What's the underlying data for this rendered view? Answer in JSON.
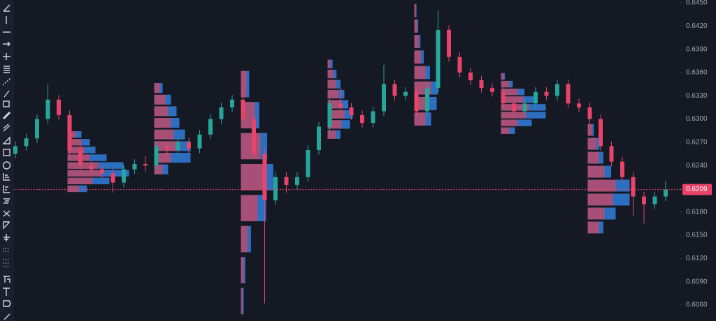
{
  "chart_data": {
    "type": "candlestick",
    "up_color": "#26a69a",
    "down_color": "#e8436a",
    "ylim": [
      0.606,
      0.645
    ],
    "yticks": [
      {
        "value": 0.606,
        "label": "0.6060"
      },
      {
        "value": 0.609,
        "label": "0.6090"
      },
      {
        "value": 0.612,
        "label": "0.6120"
      },
      {
        "value": 0.615,
        "label": "0.6150"
      },
      {
        "value": 0.618,
        "label": "0.6180"
      },
      {
        "value": 0.621,
        "label": "0.6210"
      },
      {
        "value": 0.624,
        "label": "0.6240"
      },
      {
        "value": 0.627,
        "label": "0.6270"
      },
      {
        "value": 0.63,
        "label": "0.6300"
      },
      {
        "value": 0.633,
        "label": "0.6330"
      },
      {
        "value": 0.636,
        "label": "0.6360"
      },
      {
        "value": 0.639,
        "label": "0.6390"
      },
      {
        "value": 0.642,
        "label": "0.6420"
      },
      {
        "value": 0.645,
        "label": "0.6450"
      }
    ],
    "last_price": 0.6209,
    "open": [
      0.6255,
      0.6265,
      0.6275,
      0.63,
      0.6325,
      0.6305,
      0.626,
      0.624,
      0.6235,
      0.623,
      0.6218,
      0.6235,
      0.6242,
      0.624,
      0.6265,
      0.626,
      0.627,
      0.6262,
      0.628,
      0.63,
      0.6315,
      0.6325,
      0.63,
      0.6255,
      0.6195,
      0.6225,
      0.6215,
      0.6225,
      0.626,
      0.629,
      0.632,
      0.6315,
      0.6305,
      0.6295,
      0.631,
      0.6345,
      0.633,
      0.6335,
      0.631,
      0.634,
      0.6415,
      0.638,
      0.636,
      0.635,
      0.634,
      0.6335,
      0.632,
      0.631,
      0.632,
      0.6335,
      0.633,
      0.6345,
      0.632,
      0.6315,
      0.63,
      0.6265,
      0.6245,
      0.6225,
      0.62,
      0.619,
      0.62
    ],
    "high": [
      0.6271,
      0.6281,
      0.6306,
      0.6345,
      0.6331,
      0.6311,
      0.6266,
      0.6246,
      0.6241,
      0.6236,
      0.6241,
      0.6248,
      0.6252,
      0.6271,
      0.6271,
      0.6276,
      0.6276,
      0.6286,
      0.6306,
      0.6321,
      0.6331,
      0.6342,
      0.6306,
      0.6261,
      0.6231,
      0.6231,
      0.6231,
      0.6266,
      0.6296,
      0.6326,
      0.634,
      0.6321,
      0.6311,
      0.6316,
      0.637,
      0.6351,
      0.6341,
      0.6341,
      0.6346,
      0.644,
      0.6421,
      0.6386,
      0.6366,
      0.6356,
      0.6346,
      0.6341,
      0.6326,
      0.6326,
      0.6341,
      0.6341,
      0.6351,
      0.6351,
      0.6326,
      0.6321,
      0.6306,
      0.6271,
      0.6251,
      0.6231,
      0.6206,
      0.6206,
      0.622
    ],
    "low": [
      0.6249,
      0.6259,
      0.6269,
      0.6294,
      0.6299,
      0.6254,
      0.6234,
      0.6229,
      0.6224,
      0.6205,
      0.6212,
      0.6229,
      0.6232,
      0.6234,
      0.6254,
      0.6254,
      0.6256,
      0.6256,
      0.6274,
      0.6294,
      0.6309,
      0.6294,
      0.6249,
      0.6062,
      0.6189,
      0.6205,
      0.6209,
      0.6219,
      0.6254,
      0.6284,
      0.6309,
      0.6299,
      0.6289,
      0.6289,
      0.6304,
      0.6324,
      0.6324,
      0.6304,
      0.6304,
      0.6334,
      0.6374,
      0.6354,
      0.6344,
      0.6334,
      0.6329,
      0.6314,
      0.6304,
      0.6304,
      0.6314,
      0.6324,
      0.6324,
      0.6314,
      0.6309,
      0.6294,
      0.6259,
      0.6239,
      0.6219,
      0.6175,
      0.6165,
      0.6184,
      0.6194
    ],
    "close": [
      0.6265,
      0.6275,
      0.63,
      0.6325,
      0.6305,
      0.626,
      0.624,
      0.6235,
      0.623,
      0.6218,
      0.6235,
      0.6242,
      0.624,
      0.6265,
      0.626,
      0.627,
      0.6262,
      0.628,
      0.63,
      0.6315,
      0.6325,
      0.63,
      0.6255,
      0.6195,
      0.6225,
      0.6215,
      0.6225,
      0.626,
      0.629,
      0.632,
      0.6315,
      0.6305,
      0.6295,
      0.631,
      0.6345,
      0.633,
      0.6335,
      0.631,
      0.634,
      0.6415,
      0.638,
      0.636,
      0.635,
      0.634,
      0.6335,
      0.632,
      0.631,
      0.632,
      0.6335,
      0.633,
      0.6345,
      0.632,
      0.6315,
      0.63,
      0.6265,
      0.6245,
      0.6225,
      0.62,
      0.619,
      0.62,
      0.6209
    ],
    "profile_sell_color": "#c05a86",
    "profile_buy_color": "#2f78d0",
    "profiles": [
      {
        "start": 5,
        "prices": [
          0.621,
          0.622,
          0.623,
          0.624,
          0.625,
          0.626,
          0.627,
          0.628
        ],
        "sell": [
          20,
          45,
          60,
          55,
          40,
          30,
          25,
          15
        ],
        "buy": [
          15,
          30,
          50,
          45,
          30,
          20,
          15,
          10
        ]
      },
      {
        "start": 13,
        "prices": [
          0.6235,
          0.625,
          0.6265,
          0.628,
          0.6295,
          0.631,
          0.6325,
          0.634
        ],
        "sell": [
          15,
          30,
          40,
          35,
          30,
          25,
          20,
          10
        ],
        "buy": [
          10,
          35,
          25,
          20,
          15,
          15,
          10,
          5
        ]
      },
      {
        "start": 21,
        "prices": [
          0.6065,
          0.6105,
          0.6145,
          0.6185,
          0.6225,
          0.6265,
          0.6305,
          0.6345
        ],
        "sell": [
          3,
          5,
          12,
          30,
          40,
          35,
          25,
          10
        ],
        "buy": [
          2,
          3,
          6,
          15,
          18,
          12,
          8,
          5
        ]
      },
      {
        "start": 29,
        "prices": [
          0.628,
          0.6293,
          0.6306,
          0.6319,
          0.6332,
          0.6345,
          0.6358,
          0.6371
        ],
        "sell": [
          15,
          25,
          30,
          25,
          20,
          15,
          10,
          5
        ],
        "buy": [
          8,
          15,
          15,
          12,
          10,
          8,
          6,
          4
        ]
      },
      {
        "start": 37,
        "prices": [
          0.63,
          0.632,
          0.634,
          0.636,
          0.638,
          0.64,
          0.642,
          0.644
        ],
        "sell": [
          20,
          25,
          30,
          20,
          12,
          8,
          5,
          3
        ],
        "buy": [
          10,
          15,
          12,
          8,
          5,
          3,
          2,
          1
        ]
      },
      {
        "start": 45,
        "prices": [
          0.6285,
          0.6295,
          0.6305,
          0.6315,
          0.6325,
          0.6335,
          0.6345,
          0.6355
        ],
        "sell": [
          15,
          30,
          45,
          50,
          40,
          30,
          15,
          5
        ],
        "buy": [
          10,
          25,
          35,
          30,
          20,
          12,
          6,
          2
        ]
      },
      {
        "start": 53,
        "prices": [
          0.616,
          0.6178,
          0.6196,
          0.6214,
          0.6232,
          0.625,
          0.6268,
          0.6286
        ],
        "sell": [
          20,
          30,
          45,
          50,
          30,
          20,
          15,
          8
        ],
        "buy": [
          8,
          20,
          30,
          25,
          12,
          8,
          6,
          3
        ]
      }
    ]
  }
}
